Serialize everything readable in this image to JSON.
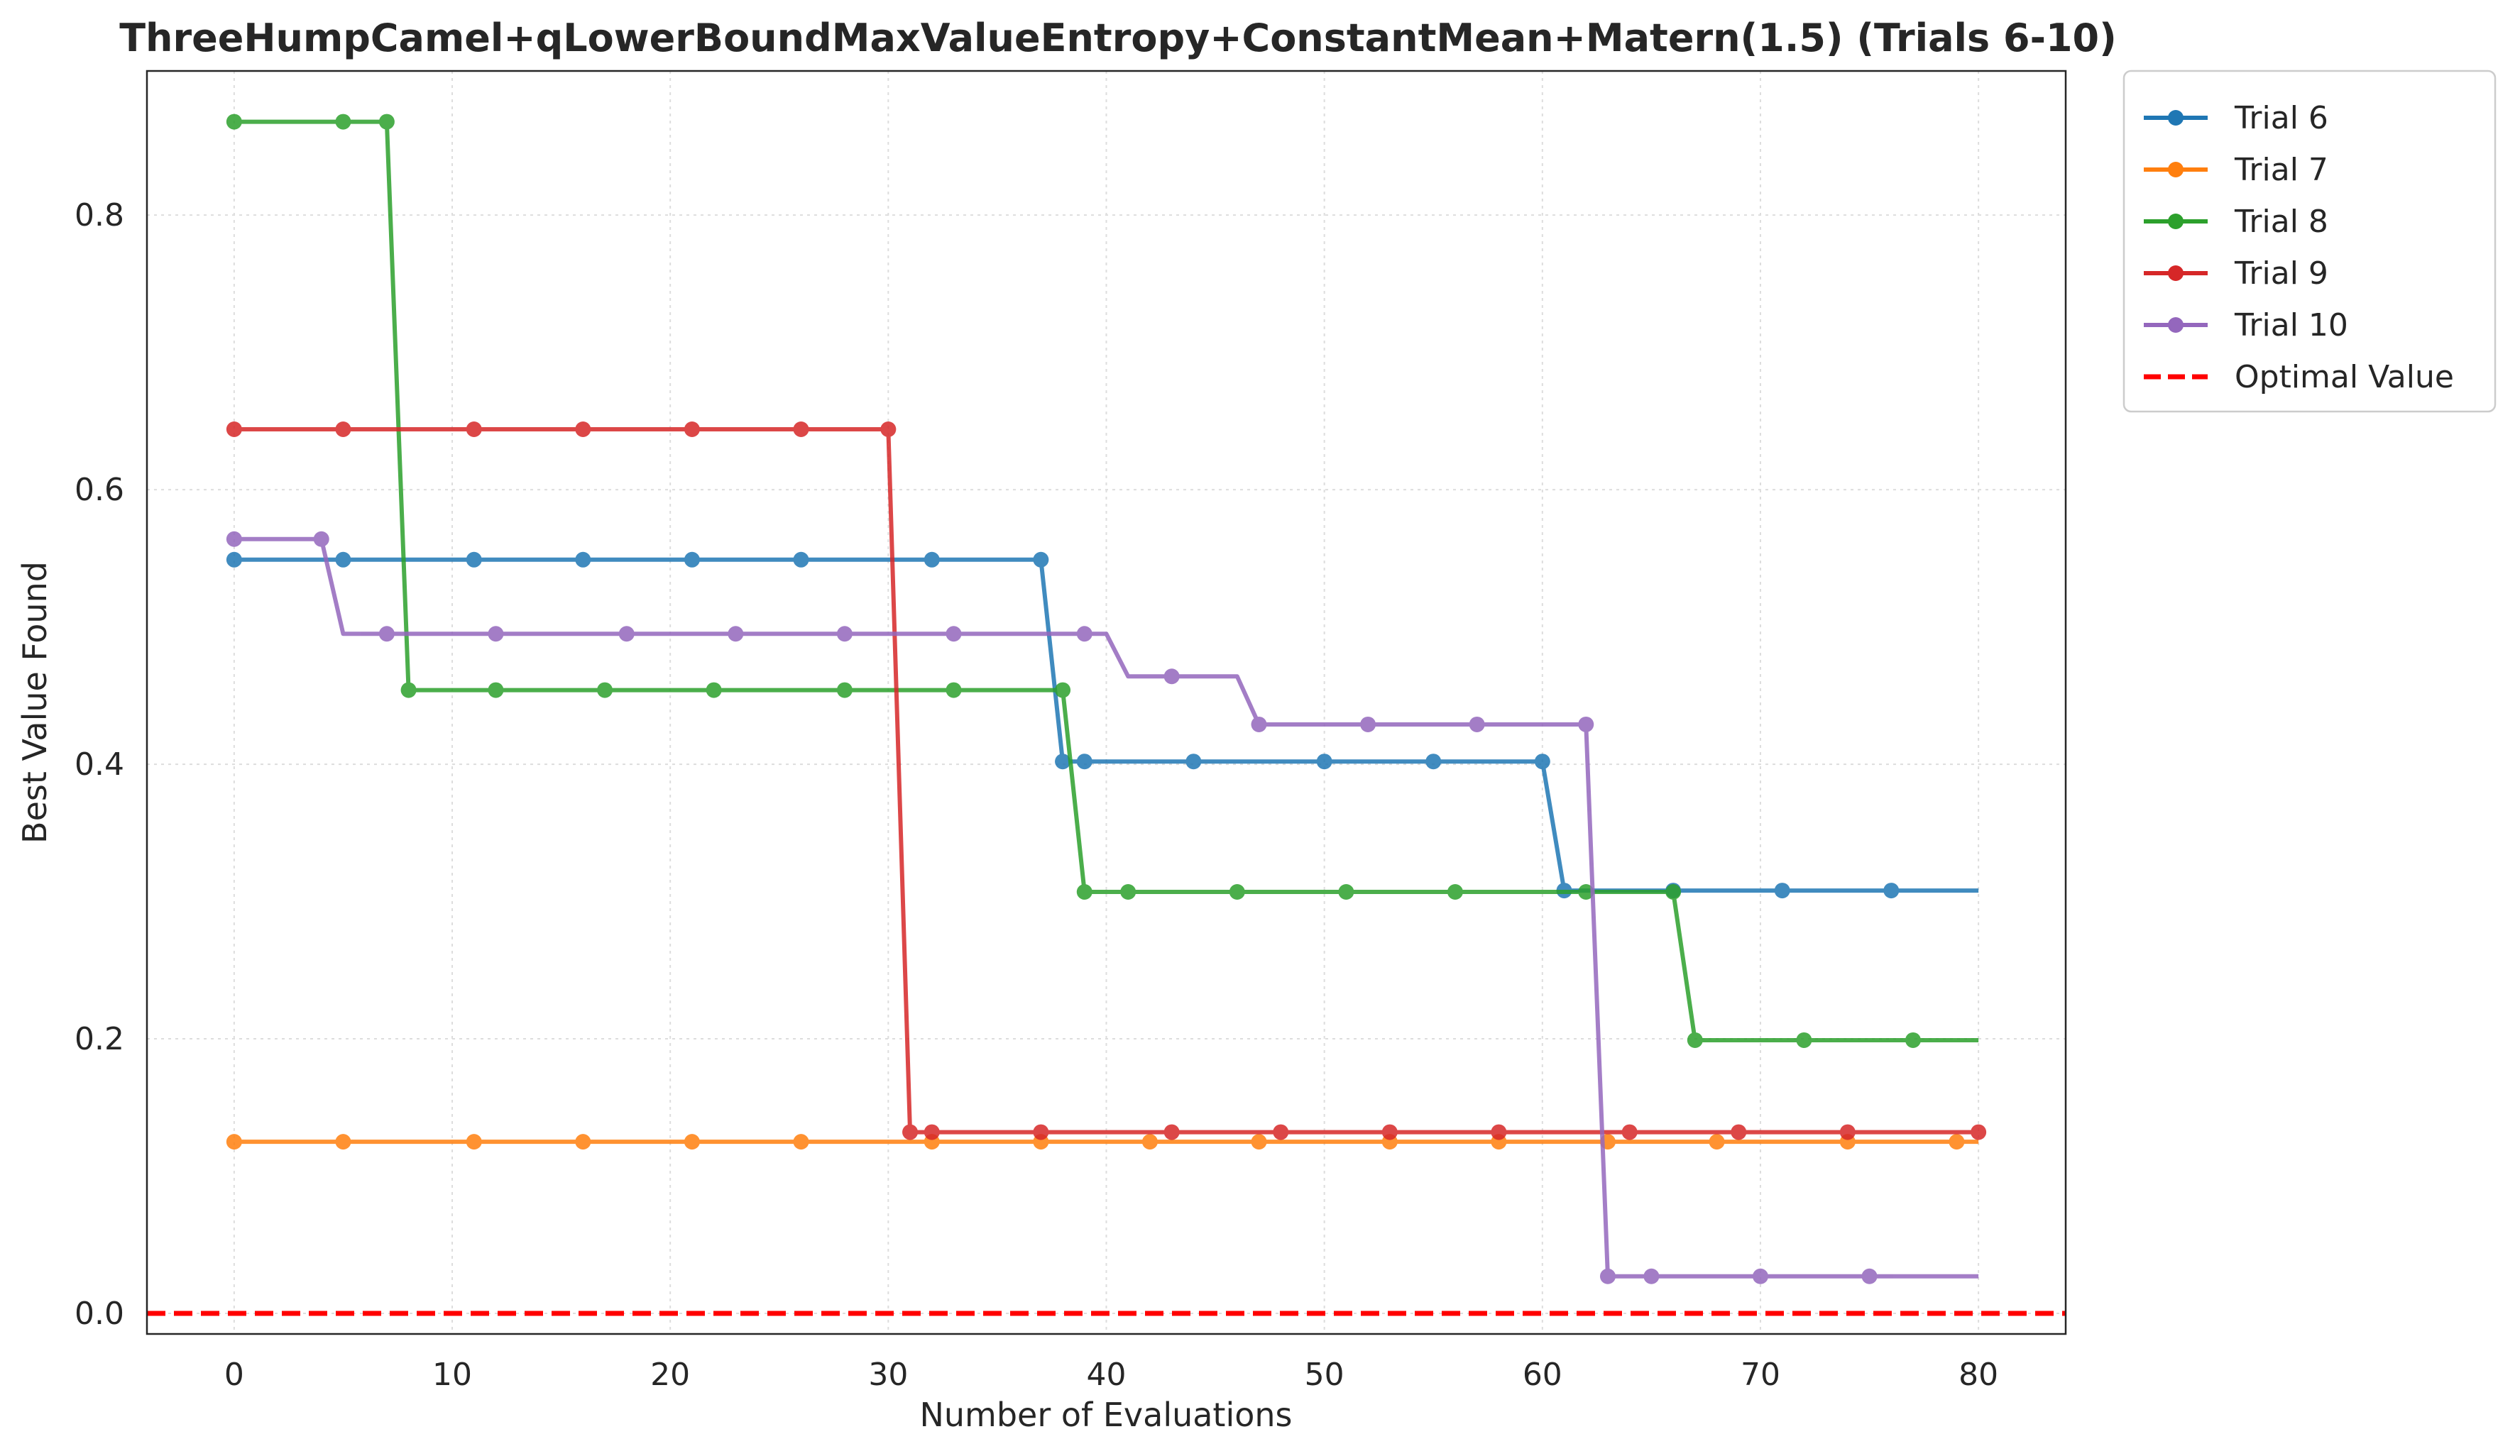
{
  "chart_data": {
    "type": "line",
    "title": "ThreeHumpCamel+qLowerBoundMaxValueEntropy+ConstantMean+Matern(1.5) (Trials 6-10)",
    "xlabel": "Number of Evaluations",
    "ylabel": "Best Value Found",
    "xlim": [
      -4,
      84
    ],
    "ylim": [
      -0.015,
      0.905
    ],
    "xticks": [
      0,
      10,
      20,
      30,
      40,
      50,
      60,
      70,
      80
    ],
    "yticks": [
      0.0,
      0.2,
      0.4,
      0.6,
      0.8
    ],
    "xtick_labels": [
      "0",
      "10",
      "20",
      "30",
      "40",
      "50",
      "60",
      "70",
      "80"
    ],
    "ytick_labels": [
      "0.0",
      "0.2",
      "0.4",
      "0.6",
      "0.8"
    ],
    "grid": true,
    "legend_position": "outside-top-right",
    "series": [
      {
        "name": "Trial 6",
        "color": "#1f77b4",
        "line": [
          [
            0,
            0.549
          ],
          [
            37,
            0.549
          ],
          [
            38,
            0.402
          ],
          [
            60,
            0.402
          ],
          [
            61,
            0.308
          ],
          [
            80,
            0.308
          ]
        ],
        "markers": [
          [
            0,
            0.549
          ],
          [
            5,
            0.549
          ],
          [
            11,
            0.549
          ],
          [
            16,
            0.549
          ],
          [
            21,
            0.549
          ],
          [
            26,
            0.549
          ],
          [
            32,
            0.549
          ],
          [
            37,
            0.549
          ],
          [
            38,
            0.402
          ],
          [
            39,
            0.402
          ],
          [
            44,
            0.402
          ],
          [
            50,
            0.402
          ],
          [
            55,
            0.402
          ],
          [
            60,
            0.402
          ],
          [
            61,
            0.308
          ],
          [
            66,
            0.308
          ],
          [
            71,
            0.308
          ],
          [
            76,
            0.308
          ]
        ]
      },
      {
        "name": "Trial 7",
        "color": "#ff7f0e",
        "line": [
          [
            0,
            0.125
          ],
          [
            80,
            0.125
          ]
        ],
        "markers": [
          [
            0,
            0.125
          ],
          [
            5,
            0.125
          ],
          [
            11,
            0.125
          ],
          [
            16,
            0.125
          ],
          [
            21,
            0.125
          ],
          [
            26,
            0.125
          ],
          [
            32,
            0.125
          ],
          [
            37,
            0.125
          ],
          [
            42,
            0.125
          ],
          [
            47,
            0.125
          ],
          [
            53,
            0.125
          ],
          [
            58,
            0.125
          ],
          [
            63,
            0.125
          ],
          [
            68,
            0.125
          ],
          [
            74,
            0.125
          ],
          [
            79,
            0.125
          ]
        ]
      },
      {
        "name": "Trial 8",
        "color": "#2ca02c",
        "line": [
          [
            0,
            0.868
          ],
          [
            7,
            0.868
          ],
          [
            8,
            0.454
          ],
          [
            38,
            0.454
          ],
          [
            39,
            0.307
          ],
          [
            66,
            0.307
          ],
          [
            67,
            0.199
          ],
          [
            80,
            0.199
          ]
        ],
        "markers": [
          [
            0,
            0.868
          ],
          [
            5,
            0.868
          ],
          [
            7,
            0.868
          ],
          [
            8,
            0.454
          ],
          [
            12,
            0.454
          ],
          [
            17,
            0.454
          ],
          [
            22,
            0.454
          ],
          [
            28,
            0.454
          ],
          [
            33,
            0.454
          ],
          [
            38,
            0.454
          ],
          [
            39,
            0.307
          ],
          [
            41,
            0.307
          ],
          [
            46,
            0.307
          ],
          [
            51,
            0.307
          ],
          [
            56,
            0.307
          ],
          [
            62,
            0.307
          ],
          [
            66,
            0.307
          ],
          [
            67,
            0.199
          ],
          [
            72,
            0.199
          ],
          [
            77,
            0.199
          ]
        ]
      },
      {
        "name": "Trial 9",
        "color": "#d62728",
        "line": [
          [
            0,
            0.644
          ],
          [
            30,
            0.644
          ],
          [
            31,
            0.132
          ],
          [
            80,
            0.132
          ]
        ],
        "markers": [
          [
            0,
            0.644
          ],
          [
            5,
            0.644
          ],
          [
            11,
            0.644
          ],
          [
            16,
            0.644
          ],
          [
            21,
            0.644
          ],
          [
            26,
            0.644
          ],
          [
            30,
            0.644
          ],
          [
            31,
            0.132
          ],
          [
            32,
            0.132
          ],
          [
            37,
            0.132
          ],
          [
            43,
            0.132
          ],
          [
            48,
            0.132
          ],
          [
            53,
            0.132
          ],
          [
            58,
            0.132
          ],
          [
            64,
            0.132
          ],
          [
            69,
            0.132
          ],
          [
            74,
            0.132
          ],
          [
            80,
            0.132
          ]
        ]
      },
      {
        "name": "Trial 10",
        "color": "#9467bd",
        "line": [
          [
            0,
            0.564
          ],
          [
            4,
            0.564
          ],
          [
            5,
            0.495
          ],
          [
            40,
            0.495
          ],
          [
            41,
            0.464
          ],
          [
            46,
            0.464
          ],
          [
            47,
            0.429
          ],
          [
            62,
            0.429
          ],
          [
            63,
            0.027
          ],
          [
            80,
            0.027
          ]
        ],
        "markers": [
          [
            0,
            0.564
          ],
          [
            4,
            0.564
          ],
          [
            7,
            0.495
          ],
          [
            12,
            0.495
          ],
          [
            18,
            0.495
          ],
          [
            23,
            0.495
          ],
          [
            28,
            0.495
          ],
          [
            33,
            0.495
          ],
          [
            39,
            0.495
          ],
          [
            43,
            0.464
          ],
          [
            47,
            0.429
          ],
          [
            52,
            0.429
          ],
          [
            57,
            0.429
          ],
          [
            62,
            0.429
          ],
          [
            63,
            0.027
          ],
          [
            65,
            0.027
          ],
          [
            70,
            0.027
          ],
          [
            75,
            0.027
          ]
        ]
      }
    ],
    "reference_lines": [
      {
        "name": "Optimal Value",
        "y": 0.0,
        "color": "#ff0000",
        "style": "dashed"
      }
    ]
  }
}
